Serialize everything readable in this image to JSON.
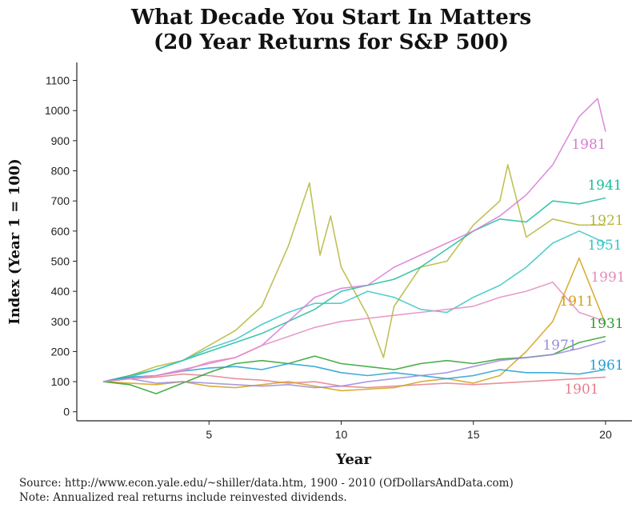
{
  "title_line1": "What Decade You Start In Matters",
  "title_line2": "(20 Year Returns for S&P 500)",
  "source_note": "Source:  http://www.econ.yale.edu/~shiller/data.htm, 1900 - 2010 (OfDollarsAndData.com)",
  "note": "Note:  Annualized real returns include reinvested dividends.",
  "chart_data": {
    "type": "line",
    "xlabel": "Year",
    "ylabel": "Index (Year 1 = 100)",
    "xlim": [
      0,
      21
    ],
    "ylim": [
      -30,
      1160
    ],
    "x_ticks": [
      5,
      10,
      15,
      20
    ],
    "y_ticks": [
      0,
      100,
      200,
      300,
      400,
      500,
      600,
      700,
      800,
      900,
      1000,
      1100
    ],
    "grid": false,
    "legend": "none (labels placed at line ends)",
    "series": [
      {
        "name": "1901",
        "color": "#e67e8a",
        "points": [
          [
            1,
            100
          ],
          [
            2,
            110
          ],
          [
            3,
            115
          ],
          [
            4,
            125
          ],
          [
            5,
            120
          ],
          [
            6,
            110
          ],
          [
            7,
            105
          ],
          [
            8,
            95
          ],
          [
            9,
            100
          ],
          [
            10,
            85
          ],
          [
            11,
            80
          ],
          [
            12,
            85
          ],
          [
            13,
            90
          ],
          [
            14,
            95
          ],
          [
            15,
            90
          ],
          [
            16,
            95
          ],
          [
            17,
            100
          ],
          [
            18,
            105
          ],
          [
            19,
            110
          ],
          [
            20,
            115
          ]
        ]
      },
      {
        "name": "1911",
        "color": "#d4a017",
        "points": [
          [
            1,
            100
          ],
          [
            2,
            95
          ],
          [
            3,
            90
          ],
          [
            4,
            100
          ],
          [
            5,
            85
          ],
          [
            6,
            80
          ],
          [
            7,
            90
          ],
          [
            8,
            100
          ],
          [
            9,
            85
          ],
          [
            10,
            70
          ],
          [
            11,
            75
          ],
          [
            12,
            80
          ],
          [
            13,
            100
          ],
          [
            14,
            110
          ],
          [
            15,
            95
          ],
          [
            16,
            120
          ],
          [
            17,
            200
          ],
          [
            18,
            300
          ],
          [
            19,
            510
          ],
          [
            20,
            290
          ]
        ]
      },
      {
        "name": "1921",
        "color": "#b5b53b",
        "points": [
          [
            1,
            100
          ],
          [
            2,
            120
          ],
          [
            3,
            150
          ],
          [
            4,
            170
          ],
          [
            5,
            220
          ],
          [
            6,
            270
          ],
          [
            7,
            350
          ],
          [
            8,
            550
          ],
          [
            8.8,
            760
          ],
          [
            9.2,
            520
          ],
          [
            9.6,
            650
          ],
          [
            10,
            480
          ],
          [
            11,
            320
          ],
          [
            11.6,
            180
          ],
          [
            12,
            350
          ],
          [
            13,
            480
          ],
          [
            14,
            500
          ],
          [
            15,
            620
          ],
          [
            16,
            700
          ],
          [
            16.3,
            820
          ],
          [
            17,
            580
          ],
          [
            18,
            640
          ],
          [
            19,
            620
          ],
          [
            20,
            620
          ]
        ]
      },
      {
        "name": "1931",
        "color": "#2ca02c",
        "points": [
          [
            1,
            100
          ],
          [
            2,
            90
          ],
          [
            3,
            60
          ],
          [
            4,
            95
          ],
          [
            5,
            130
          ],
          [
            6,
            160
          ],
          [
            7,
            170
          ],
          [
            8,
            160
          ],
          [
            9,
            185
          ],
          [
            10,
            160
          ],
          [
            11,
            150
          ],
          [
            12,
            140
          ],
          [
            13,
            160
          ],
          [
            14,
            170
          ],
          [
            15,
            160
          ],
          [
            16,
            175
          ],
          [
            17,
            180
          ],
          [
            18,
            190
          ],
          [
            19,
            230
          ],
          [
            20,
            250
          ]
        ]
      },
      {
        "name": "1941",
        "color": "#1abc9c",
        "points": [
          [
            1,
            100
          ],
          [
            2,
            120
          ],
          [
            3,
            140
          ],
          [
            4,
            170
          ],
          [
            5,
            200
          ],
          [
            6,
            230
          ],
          [
            7,
            260
          ],
          [
            8,
            300
          ],
          [
            9,
            340
          ],
          [
            10,
            400
          ],
          [
            11,
            420
          ],
          [
            12,
            440
          ],
          [
            13,
            480
          ],
          [
            14,
            540
          ],
          [
            15,
            600
          ],
          [
            16,
            640
          ],
          [
            17,
            630
          ],
          [
            18,
            700
          ],
          [
            19,
            690
          ],
          [
            20,
            710
          ]
        ]
      },
      {
        "name": "1951",
        "color": "#36c5c5",
        "points": [
          [
            1,
            100
          ],
          [
            2,
            115
          ],
          [
            3,
            140
          ],
          [
            4,
            170
          ],
          [
            5,
            210
          ],
          [
            6,
            240
          ],
          [
            7,
            290
          ],
          [
            8,
            330
          ],
          [
            9,
            360
          ],
          [
            10,
            360
          ],
          [
            11,
            400
          ],
          [
            12,
            380
          ],
          [
            13,
            340
          ],
          [
            14,
            330
          ],
          [
            15,
            380
          ],
          [
            16,
            420
          ],
          [
            17,
            480
          ],
          [
            18,
            560
          ],
          [
            19,
            600
          ],
          [
            20,
            560
          ]
        ]
      },
      {
        "name": "1961",
        "color": "#1f9fd0",
        "points": [
          [
            1,
            100
          ],
          [
            2,
            115
          ],
          [
            3,
            120
          ],
          [
            4,
            135
          ],
          [
            5,
            145
          ],
          [
            6,
            150
          ],
          [
            7,
            140
          ],
          [
            8,
            160
          ],
          [
            9,
            150
          ],
          [
            10,
            130
          ],
          [
            11,
            120
          ],
          [
            12,
            130
          ],
          [
            13,
            120
          ],
          [
            14,
            110
          ],
          [
            15,
            120
          ],
          [
            16,
            140
          ],
          [
            17,
            130
          ],
          [
            18,
            130
          ],
          [
            19,
            125
          ],
          [
            20,
            140
          ]
        ]
      },
      {
        "name": "1971",
        "color": "#9b8ad8",
        "points": [
          [
            1,
            100
          ],
          [
            2,
            110
          ],
          [
            3,
            95
          ],
          [
            4,
            100
          ],
          [
            5,
            95
          ],
          [
            6,
            90
          ],
          [
            7,
            85
          ],
          [
            8,
            90
          ],
          [
            9,
            80
          ],
          [
            10,
            85
          ],
          [
            11,
            100
          ],
          [
            12,
            110
          ],
          [
            13,
            120
          ],
          [
            14,
            130
          ],
          [
            15,
            150
          ],
          [
            16,
            170
          ],
          [
            17,
            180
          ],
          [
            18,
            190
          ],
          [
            19,
            210
          ],
          [
            20,
            235
          ]
        ]
      },
      {
        "name": "1981",
        "color": "#d67ad6",
        "points": [
          [
            1,
            100
          ],
          [
            2,
            110
          ],
          [
            3,
            120
          ],
          [
            4,
            140
          ],
          [
            5,
            160
          ],
          [
            6,
            180
          ],
          [
            7,
            220
          ],
          [
            8,
            300
          ],
          [
            9,
            380
          ],
          [
            10,
            410
          ],
          [
            11,
            420
          ],
          [
            12,
            480
          ],
          [
            13,
            520
          ],
          [
            14,
            560
          ],
          [
            15,
            600
          ],
          [
            16,
            650
          ],
          [
            17,
            720
          ],
          [
            18,
            820
          ],
          [
            19,
            980
          ],
          [
            19.7,
            1040
          ],
          [
            20,
            930
          ]
        ]
      },
      {
        "name": "1991",
        "color": "#e48bbf",
        "points": [
          [
            1,
            100
          ],
          [
            2,
            110
          ],
          [
            3,
            120
          ],
          [
            4,
            135
          ],
          [
            5,
            165
          ],
          [
            6,
            180
          ],
          [
            7,
            220
          ],
          [
            8,
            250
          ],
          [
            9,
            280
          ],
          [
            10,
            300
          ],
          [
            11,
            310
          ],
          [
            12,
            320
          ],
          [
            13,
            330
          ],
          [
            14,
            340
          ],
          [
            15,
            350
          ],
          [
            16,
            380
          ],
          [
            17,
            400
          ],
          [
            18,
            430
          ],
          [
            19,
            330
          ],
          [
            20,
            300
          ]
        ]
      }
    ],
    "end_labels": [
      "1981",
      "1941",
      "1921",
      "1951",
      "1991",
      "1911",
      "1931",
      "1971",
      "1961",
      "1901"
    ]
  }
}
